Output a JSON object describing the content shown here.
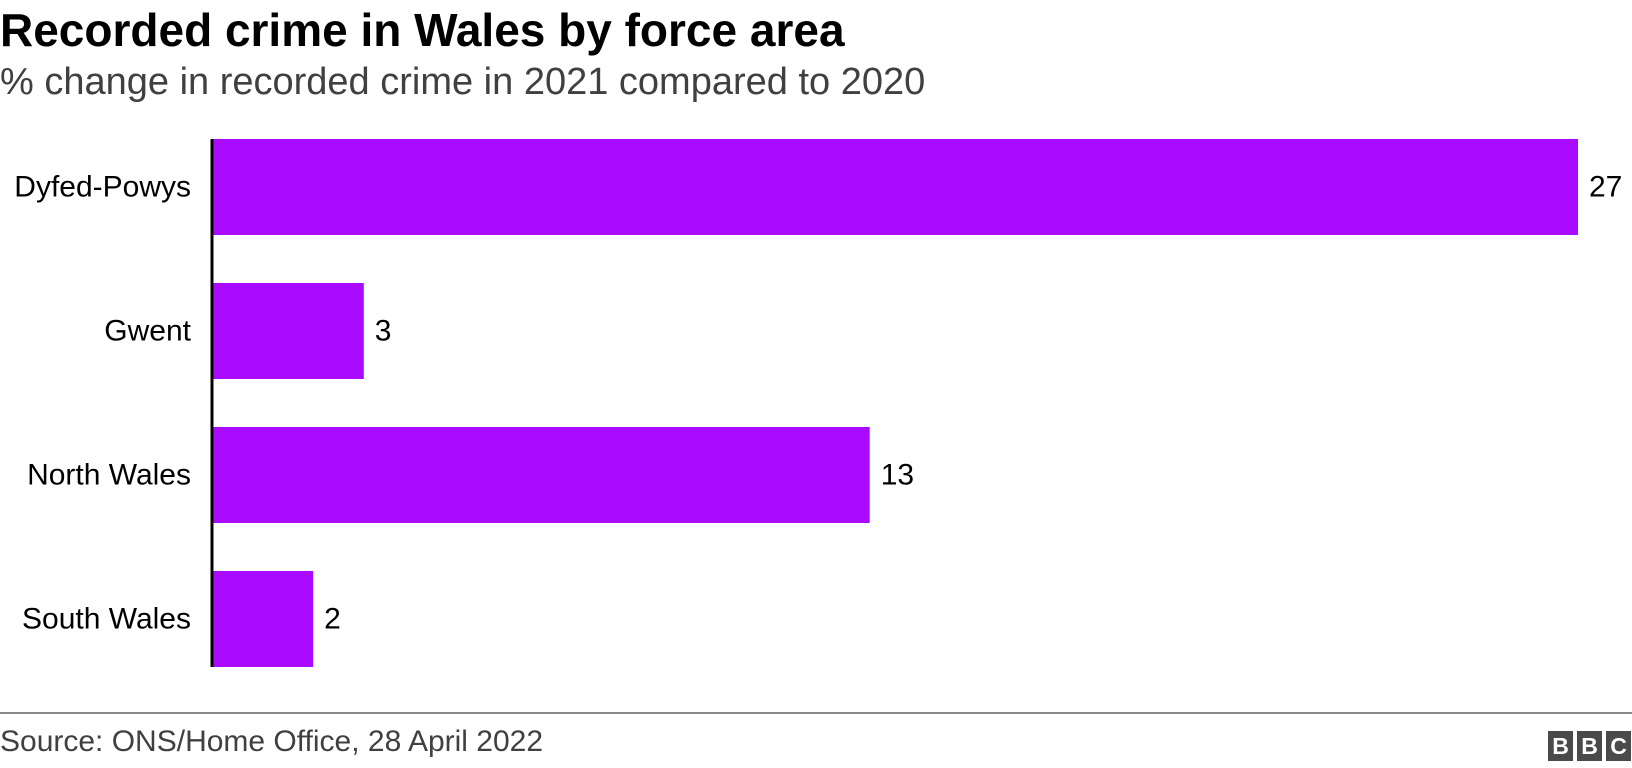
{
  "title": "Recorded crime in Wales by force area",
  "subtitle": "% change in recorded crime in 2021 compared to 2020",
  "source": "Source: ONS/Home Office, 28 April 2022",
  "logo": [
    "B",
    "B",
    "C"
  ],
  "colors": {
    "bar": "#aa0aff",
    "axis": "#000000",
    "footer_rule": "#8a8a8a"
  },
  "chart_data": {
    "type": "bar",
    "orientation": "horizontal",
    "title": "Recorded crime in Wales by force area",
    "subtitle": "% change in recorded crime in 2021 compared to 2020",
    "categories": [
      "Dyfed-Powys",
      "Gwent",
      "North Wales",
      "South Wales"
    ],
    "values": [
      27,
      3,
      13,
      2
    ],
    "xlim": [
      0,
      27
    ],
    "grid": false,
    "legend": "none",
    "data_labels": true
  }
}
